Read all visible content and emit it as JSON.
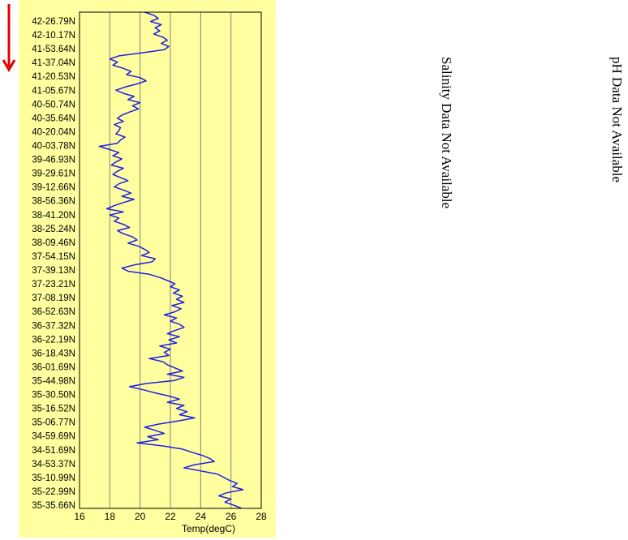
{
  "chart_data": {
    "type": "line",
    "orientation": "vertical",
    "xlabel": "Temp(degC)",
    "xlim": [
      16,
      28
    ],
    "xticks": [
      16,
      18,
      20,
      22,
      24,
      26,
      28
    ],
    "y_tick_labels": [
      "42-26.79N",
      "42-10.17N",
      "41-53.64N",
      "41-37.04N",
      "41-20.53N",
      "41-05.67N",
      "40-50.74N",
      "40-35.64N",
      "40-20.04N",
      "40-03.78N",
      "39-46.93N",
      "39-29.61N",
      "39-12.66N",
      "38-56.36N",
      "38-41.20N",
      "38-25.24N",
      "38-09.46N",
      "37-54.15N",
      "37-39.13N",
      "37-23.21N",
      "37-08.19N",
      "36-52.63N",
      "36-37.32N",
      "36-22.19N",
      "36-18.43N",
      "36-01.69N",
      "35-44.98N",
      "35-30.50N",
      "35-16.52N",
      "35-06.77N",
      "34-59.69N",
      "34-51.69N",
      "34-53.37N",
      "35-10.99N",
      "35-22.99N",
      "35-35.66N"
    ],
    "grid": "vertical",
    "line_color": "#1f1fe6",
    "series": [
      {
        "values": [
          20.3,
          20.9,
          21.2,
          20.7,
          21.4,
          21.0,
          21.3,
          20.9,
          21.5,
          21.8,
          21.4,
          21.9,
          21.6,
          20.2,
          18.6,
          18.0,
          18.5,
          18.2,
          18.9,
          19.4,
          19.1,
          20.0,
          20.4,
          19.8,
          19.0,
          18.4,
          18.9,
          19.6,
          19.2,
          20.0,
          19.5,
          19.9,
          19.3,
          18.8,
          18.5,
          18.9,
          18.3,
          18.7,
          18.6,
          18.4,
          19.0,
          18.7,
          18.5,
          17.3,
          18.0,
          18.6,
          18.2,
          18.8,
          18.4,
          18.1,
          18.9,
          18.5,
          18.2,
          18.7,
          19.2,
          18.6,
          18.3,
          18.9,
          19.4,
          18.8,
          19.6,
          18.9,
          18.3,
          17.8,
          18.9,
          18.0,
          18.6,
          18.3,
          18.9,
          19.3,
          18.5,
          18.9,
          19.5,
          19.8,
          19.2,
          19.9,
          20.3,
          20.6,
          20.1,
          21.0,
          20.8,
          19.6,
          18.8,
          19.2,
          20.6,
          21.3,
          21.8,
          22.3,
          22.0,
          22.6,
          22.2,
          22.8,
          22.4,
          22.9,
          22.1,
          22.7,
          22.3,
          21.6,
          22.4,
          22.0,
          22.6,
          22.9,
          22.3,
          21.8,
          22.6,
          21.9,
          22.4,
          21.3,
          22.0,
          21.6,
          21.9,
          20.6,
          21.5,
          21.8,
          22.3,
          22.8,
          21.8,
          22.9,
          22.3,
          20.4,
          19.3,
          20.2,
          21.0,
          21.9,
          22.6,
          21.8,
          22.9,
          22.4,
          23.1,
          22.6,
          23.6,
          22.5,
          21.2,
          20.3,
          21.0,
          21.6,
          20.5,
          21.2,
          19.8,
          21.5,
          22.8,
          23.4,
          24.1,
          24.6,
          24.9,
          23.6,
          22.9,
          24.0,
          25.1,
          25.5,
          25.9,
          26.4,
          26.1,
          26.8,
          25.7,
          25.2,
          26.0,
          25.6,
          26.2,
          26.7
        ]
      }
    ]
  }
}
